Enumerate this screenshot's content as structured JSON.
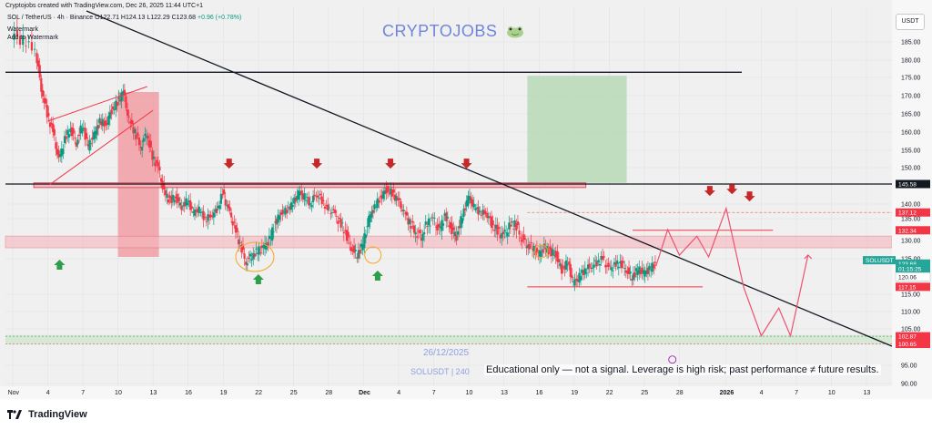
{
  "header": {
    "created_line": "Cryptojobs created with TradingView.com, Dec 26, 2025 11:44 UTC+1",
    "symbol_desc": "SOL / TetherUS · 4h · Binance",
    "ohlc": "O122.71 H124.13 L122.29 C123.68",
    "change": "+0.96 (+0.78%)",
    "watermark_1": "Watermark",
    "watermark_2": "Add to Watermark"
  },
  "watermark_title": "CRYPTOJOBS",
  "date_watermark": "26/12/2025",
  "symbol_watermark": "SOLUSDT | 240",
  "disclaimer": "Educational only — not a signal. Leverage is high risk; past performance ≠ future results.",
  "currency_button": "USDT",
  "brand": "TradingView",
  "colors": {
    "up": "#089981",
    "down": "#f23645",
    "resistance_zone": "#f5b7bd",
    "target_box": "#b8d9b7",
    "drop_box": "#f28b95",
    "price_tag": "#26a69a"
  },
  "chart_data": {
    "type": "candlestick",
    "title": "",
    "ylim": [
      90,
      191
    ],
    "y_ticks": [
      185,
      180,
      175,
      170,
      165,
      160,
      155,
      150,
      140,
      135,
      130,
      125,
      115,
      110,
      105,
      95,
      90
    ],
    "y_tick_labels": [
      "185.00",
      "180.00",
      "175.00",
      "170.00",
      "165.00",
      "160.00",
      "155.00",
      "150.00",
      "140.00",
      "135.00",
      "130.00",
      "125.00",
      "115.00",
      "110.00",
      "105.00",
      "95.00",
      "90.00"
    ],
    "x_ticks": [
      {
        "label": "Nov",
        "day": 0
      },
      {
        "label": "4",
        "day": 3
      },
      {
        "label": "7",
        "day": 6
      },
      {
        "label": "10",
        "day": 9
      },
      {
        "label": "13",
        "day": 12
      },
      {
        "label": "16",
        "day": 15
      },
      {
        "label": "19",
        "day": 18
      },
      {
        "label": "22",
        "day": 21
      },
      {
        "label": "25",
        "day": 24
      },
      {
        "label": "28",
        "day": 27
      },
      {
        "label": "Dec",
        "day": 30
      },
      {
        "label": "4",
        "day": 33
      },
      {
        "label": "7",
        "day": 36
      },
      {
        "label": "10",
        "day": 39
      },
      {
        "label": "13",
        "day": 42
      },
      {
        "label": "16",
        "day": 45
      },
      {
        "label": "19",
        "day": 48
      },
      {
        "label": "22",
        "day": 51
      },
      {
        "label": "25",
        "day": 54
      },
      {
        "label": "28",
        "day": 57
      },
      {
        "label": "2026",
        "day": 61
      },
      {
        "label": "4",
        "day": 64
      },
      {
        "label": "7",
        "day": 67
      },
      {
        "label": "10",
        "day": 70
      },
      {
        "label": "13",
        "day": 73
      }
    ],
    "price_path": [
      [
        0,
        186
      ],
      [
        1,
        185
      ],
      [
        2,
        183
      ],
      [
        2.5,
        172
      ],
      [
        3,
        165
      ],
      [
        3.5,
        160
      ],
      [
        4,
        152
      ],
      [
        4.5,
        158
      ],
      [
        5,
        161
      ],
      [
        5.5,
        157
      ],
      [
        6,
        162
      ],
      [
        6.5,
        156
      ],
      [
        7,
        159
      ],
      [
        7.5,
        163
      ],
      [
        8,
        162
      ],
      [
        8.5,
        166
      ],
      [
        9,
        168
      ],
      [
        9.5,
        171
      ],
      [
        10,
        163
      ],
      [
        10.5,
        160
      ],
      [
        11,
        156
      ],
      [
        11.5,
        160
      ],
      [
        12,
        153
      ],
      [
        12.5,
        150
      ],
      [
        13,
        143
      ],
      [
        13.5,
        141
      ],
      [
        14,
        142
      ],
      [
        14.5,
        139
      ],
      [
        15,
        141
      ],
      [
        15.5,
        137
      ],
      [
        16,
        138
      ],
      [
        16.5,
        135
      ],
      [
        17,
        136
      ],
      [
        17.5,
        138
      ],
      [
        18,
        143
      ],
      [
        18.5,
        138
      ],
      [
        19,
        133
      ],
      [
        19.5,
        129
      ],
      [
        20,
        124
      ],
      [
        20.5,
        126
      ],
      [
        21,
        127
      ],
      [
        21.5,
        128
      ],
      [
        22,
        130
      ],
      [
        22.5,
        134
      ],
      [
        23,
        137
      ],
      [
        23.5,
        138
      ],
      [
        24,
        140
      ],
      [
        24.5,
        143
      ],
      [
        25,
        142
      ],
      [
        25.5,
        140
      ],
      [
        26,
        143
      ],
      [
        26.5,
        141
      ],
      [
        27,
        138
      ],
      [
        27.5,
        137
      ],
      [
        28,
        134
      ],
      [
        28.5,
        132
      ],
      [
        29,
        128
      ],
      [
        29.5,
        126
      ],
      [
        30,
        129
      ],
      [
        30.5,
        135
      ],
      [
        31,
        139
      ],
      [
        31.5,
        142
      ],
      [
        32,
        144
      ],
      [
        32.5,
        143
      ],
      [
        33,
        141
      ],
      [
        33.5,
        137
      ],
      [
        34,
        134
      ],
      [
        34.5,
        132
      ],
      [
        35,
        131
      ],
      [
        35.5,
        134
      ],
      [
        36,
        135
      ],
      [
        36.5,
        132
      ],
      [
        37,
        136
      ],
      [
        37.5,
        133
      ],
      [
        38,
        131
      ],
      [
        38.5,
        136
      ],
      [
        39,
        142
      ],
      [
        39.5,
        139
      ],
      [
        40,
        137
      ],
      [
        40.5,
        137
      ],
      [
        41,
        134
      ],
      [
        41.5,
        132
      ],
      [
        42,
        131
      ],
      [
        42.5,
        133
      ],
      [
        43,
        134
      ],
      [
        43.5,
        131
      ],
      [
        44,
        129
      ],
      [
        44.5,
        128
      ],
      [
        45,
        126
      ],
      [
        45.5,
        128
      ],
      [
        46,
        127
      ],
      [
        46.5,
        126
      ],
      [
        47,
        122
      ],
      [
        47.5,
        124
      ],
      [
        48,
        118
      ],
      [
        48.5,
        120
      ],
      [
        49,
        122
      ],
      [
        49.5,
        123
      ],
      [
        50,
        124
      ],
      [
        50.5,
        125
      ],
      [
        51,
        122
      ],
      [
        51.5,
        123
      ],
      [
        52,
        124
      ],
      [
        52.5,
        122
      ],
      [
        53,
        120
      ],
      [
        53.5,
        122
      ],
      [
        54,
        121
      ],
      [
        54.5,
        122
      ],
      [
        55,
        123.68
      ]
    ],
    "series": [],
    "y_price_tags": [
      {
        "label": "145.58",
        "value": 145.58,
        "style": "black"
      },
      {
        "label": "137.12",
        "value": 137.12,
        "style": "red"
      },
      {
        "label": "132.34",
        "value": 132.34,
        "style": "red"
      },
      {
        "label": "SOLUSDT",
        "value": 124.6,
        "style": "green"
      },
      {
        "label": "123.68",
        "value": 123.68,
        "style": "green"
      },
      {
        "label": "01:15:25",
        "value": 122.3,
        "style": "green"
      },
      {
        "label": "120.06",
        "value": 120.06,
        "style": "white"
      },
      {
        "label": "117.15",
        "value": 117.15,
        "style": "red"
      },
      {
        "label": "102.87",
        "value": 102.87,
        "style": "red"
      },
      {
        "label": "100.65",
        "value": 100.65,
        "style": "red"
      }
    ]
  }
}
